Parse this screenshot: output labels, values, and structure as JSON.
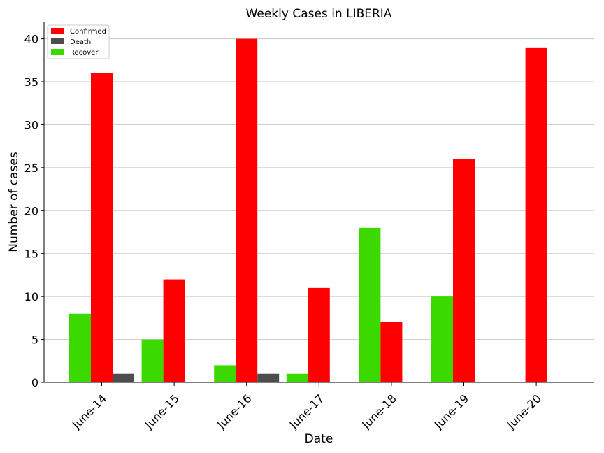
{
  "chart_data": {
    "type": "bar",
    "title": "Weekly Cases in LIBERIA",
    "xlabel": "Date",
    "ylabel": "Number of cases",
    "categories": [
      "June-14",
      "June-15",
      "June-16",
      "June-17",
      "June-18",
      "June-19",
      "June-20"
    ],
    "series": [
      {
        "name": "Recover",
        "color": "#3cd900",
        "values": [
          8,
          5,
          2,
          1,
          18,
          10,
          0
        ]
      },
      {
        "name": "Confirmed",
        "color": "#ff0000",
        "values": [
          36,
          12,
          40,
          11,
          7,
          26,
          39
        ]
      },
      {
        "name": "Death",
        "color": "#4d4d4d",
        "values": [
          1,
          0,
          1,
          0,
          0,
          0,
          0
        ]
      }
    ],
    "legend_order": [
      "Confirmed",
      "Death",
      "Recover"
    ],
    "legend_position": "top-left",
    "ylim": [
      0,
      42
    ],
    "yticks": [
      0,
      5,
      10,
      15,
      20,
      25,
      30,
      35,
      40
    ],
    "grid": "horizontal"
  }
}
